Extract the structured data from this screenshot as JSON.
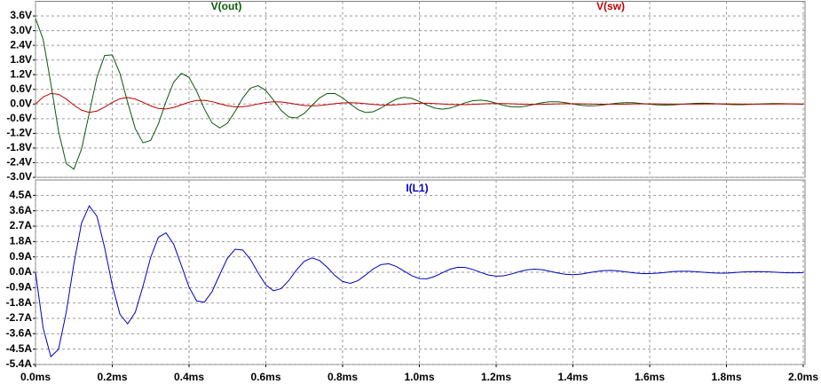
{
  "chart_data": [
    {
      "type": "line",
      "grid": true,
      "xlim": [
        0,
        2
      ],
      "xticks": [
        0,
        0.2,
        0.4,
        0.6,
        0.8,
        1.0,
        1.2,
        1.4,
        1.6,
        1.8,
        2.0
      ],
      "ylim": [
        -3.0,
        4.2
      ],
      "yticks": [
        {
          "value": 3.6,
          "label": "3.6V"
        },
        {
          "value": 3.0,
          "label": "3.0V"
        },
        {
          "value": 2.4,
          "label": "2.4V"
        },
        {
          "value": 1.8,
          "label": "1.8V"
        },
        {
          "value": 1.2,
          "label": "1.2V"
        },
        {
          "value": 0.6,
          "label": "0.6V"
        },
        {
          "value": 0.0,
          "label": "0.0V"
        },
        {
          "value": -0.6,
          "label": "-0.6V"
        },
        {
          "value": -1.2,
          "label": "-1.2V"
        },
        {
          "value": -1.8,
          "label": "-1.8V"
        },
        {
          "value": -2.4,
          "label": "-2.4V"
        },
        {
          "value": -3.0,
          "label": "-3.0V"
        }
      ],
      "x": [
        0,
        0.02,
        0.04,
        0.06,
        0.08,
        0.1,
        0.12,
        0.14,
        0.16,
        0.18,
        0.2,
        0.22,
        0.24,
        0.26,
        0.28,
        0.3,
        0.32,
        0.34,
        0.36,
        0.38,
        0.4,
        0.42,
        0.44,
        0.46,
        0.48,
        0.5,
        0.52,
        0.54,
        0.56,
        0.58,
        0.6,
        0.62,
        0.64,
        0.66,
        0.68,
        0.7,
        0.72,
        0.74,
        0.76,
        0.78,
        0.8,
        0.82,
        0.84,
        0.86,
        0.88,
        0.9,
        0.92,
        0.94,
        0.96,
        0.98,
        1.0,
        1.02,
        1.04,
        1.06,
        1.08,
        1.1,
        1.12,
        1.14,
        1.16,
        1.18,
        1.2,
        1.22,
        1.24,
        1.26,
        1.28,
        1.3,
        1.32,
        1.34,
        1.36,
        1.38,
        1.4,
        1.42,
        1.44,
        1.46,
        1.48,
        1.5,
        1.52,
        1.54,
        1.56,
        1.58,
        1.6,
        1.62,
        1.64,
        1.66,
        1.68,
        1.7,
        1.72,
        1.74,
        1.76,
        1.78,
        1.8,
        1.82,
        1.84,
        1.86,
        1.88,
        1.9,
        1.92,
        1.94,
        1.96,
        1.98,
        2.0
      ],
      "series": [
        {
          "name": "V(out)",
          "color": "#0a5a0a",
          "values": [
            3.5,
            2.638,
            0.834,
            -1.114,
            -2.432,
            -2.666,
            -1.837,
            -0.372,
            1.093,
            1.982,
            2.008,
            1.246,
            0.074,
            -1.009,
            -1.588,
            -1.49,
            -0.818,
            0.105,
            0.895,
            1.257,
            1.089,
            0.514,
            -0.205,
            -0.772,
            -0.981,
            -0.783,
            -0.301,
            0.25,
            0.648,
            0.752,
            0.553,
            0.158,
            -0.261,
            -0.534,
            -0.571,
            -0.383,
            -0.062,
            0.25,
            0.434,
            0.429,
            0.256,
            0.002,
            -0.228,
            -0.347,
            -0.316,
            -0.166,
            0.034,
            0.2,
            0.273,
            0.231,
            0.103,
            -0.044,
            -0.166,
            -0.211,
            -0.168,
            -0.065,
            0.054,
            0.139,
            0.162,
            0.119,
            0.034,
            -0.056,
            -0.115,
            -0.123,
            -0.082,
            -0.013,
            0.054,
            0.093,
            0.092,
            0.055,
            0.0,
            -0.049,
            -0.075,
            -0.068,
            -0.036,
            0.007,
            0.043,
            0.059,
            0.05,
            0.022,
            -0.009,
            -0.036,
            -0.045,
            -0.036,
            -0.014,
            0.012,
            0.03,
            0.035,
            0.026,
            0.007,
            -0.012,
            -0.025,
            -0.026,
            -0.018,
            -0.003,
            0.012,
            0.02,
            0.02,
            0.012,
            0.0,
            -0.011
          ]
        },
        {
          "name": "V(sw)",
          "color": "#c00000",
          "values": [
            0,
            0.287,
            0.433,
            0.396,
            0.207,
            -0.044,
            -0.252,
            -0.341,
            -0.288,
            -0.127,
            0.067,
            0.216,
            0.265,
            0.206,
            0.072,
            -0.076,
            -0.18,
            -0.202,
            -0.144,
            -0.035,
            0.077,
            0.147,
            0.153,
            0.099,
            0.011,
            -0.072,
            -0.118,
            -0.114,
            -0.066,
            0.004,
            0.065,
            0.094,
            0.084,
            0.042,
            -0.012,
            -0.056,
            -0.074,
            -0.061,
            -0.025,
            0.017,
            0.048,
            0.057,
            0.043,
            0.014,
            -0.018,
            -0.039,
            -0.044,
            -0.03,
            -0.006,
            0.018,
            0.032,
            0.033,
            0.021,
            0.002,
            -0.015,
            -0.025,
            -0.025,
            -0.014,
            0.001,
            0.014,
            0.02,
            0.018,
            0.009,
            -0.003,
            -0.012,
            -0.016,
            -0.013,
            -0.005,
            0.004,
            0.01,
            0.012,
            0.009,
            0.003,
            -0.004,
            -0.008,
            -0.009,
            -0.006,
            -0.001,
            0.004,
            0.007,
            0.007,
            0.005,
            0.0,
            -0.003,
            -0.005,
            -0.005,
            -0.003,
            0.0,
            0.003,
            0.004,
            0.004,
            0.002,
            -0.001,
            -0.003,
            -0.003,
            -0.003,
            -0.001,
            0.001,
            0.002,
            0.003,
            0.002
          ]
        }
      ]
    },
    {
      "type": "line",
      "grid": true,
      "xlim": [
        0,
        2
      ],
      "xticks": [
        {
          "value": 0,
          "label": "0.0ms"
        },
        {
          "value": 0.2,
          "label": "0.2ms"
        },
        {
          "value": 0.4,
          "label": "0.4ms"
        },
        {
          "value": 0.6,
          "label": "0.6ms"
        },
        {
          "value": 0.8,
          "label": "0.8ms"
        },
        {
          "value": 1.0,
          "label": "1.0ms"
        },
        {
          "value": 1.2,
          "label": "1.2ms"
        },
        {
          "value": 1.4,
          "label": "1.4ms"
        },
        {
          "value": 1.6,
          "label": "1.6ms"
        },
        {
          "value": 1.8,
          "label": "1.8ms"
        },
        {
          "value": 2.0,
          "label": "2.0ms"
        }
      ],
      "ylim": [
        -5.4,
        5.4
      ],
      "yticks": [
        {
          "value": 4.5,
          "label": "4.5A"
        },
        {
          "value": 3.6,
          "label": "3.6A"
        },
        {
          "value": 2.7,
          "label": "2.7A"
        },
        {
          "value": 1.8,
          "label": "1.8A"
        },
        {
          "value": 0.9,
          "label": "0.9A"
        },
        {
          "value": 0.0,
          "label": "0.0A"
        },
        {
          "value": -0.9,
          "label": "-0.9A"
        },
        {
          "value": -1.8,
          "label": "-1.8A"
        },
        {
          "value": -2.7,
          "label": "-2.7A"
        },
        {
          "value": -3.6,
          "label": "-3.6A"
        },
        {
          "value": -4.5,
          "label": "-4.5A"
        },
        {
          "value": -5.4,
          "label": "-5.4A"
        }
      ],
      "x": [
        0,
        0.02,
        0.04,
        0.06,
        0.08,
        0.1,
        0.12,
        0.14,
        0.16,
        0.18,
        0.2,
        0.22,
        0.24,
        0.26,
        0.28,
        0.3,
        0.32,
        0.34,
        0.36,
        0.38,
        0.4,
        0.42,
        0.44,
        0.46,
        0.48,
        0.5,
        0.52,
        0.54,
        0.56,
        0.58,
        0.6,
        0.62,
        0.64,
        0.66,
        0.68,
        0.7,
        0.72,
        0.74,
        0.76,
        0.78,
        0.8,
        0.82,
        0.84,
        0.86,
        0.88,
        0.9,
        0.92,
        0.94,
        0.96,
        0.98,
        1.0,
        1.02,
        1.04,
        1.06,
        1.08,
        1.1,
        1.12,
        1.14,
        1.16,
        1.18,
        1.2,
        1.22,
        1.24,
        1.26,
        1.28,
        1.3,
        1.32,
        1.34,
        1.36,
        1.38,
        1.4,
        1.42,
        1.44,
        1.46,
        1.48,
        1.5,
        1.52,
        1.54,
        1.56,
        1.58,
        1.6,
        1.62,
        1.64,
        1.66,
        1.68,
        1.7,
        1.72,
        1.74,
        1.76,
        1.78,
        1.8,
        1.82,
        1.84,
        1.86,
        1.88,
        1.9,
        1.92,
        1.94,
        1.96,
        1.98,
        2.0
      ],
      "series": [
        {
          "name": "I(L1)",
          "color": "#0000c0",
          "values": [
            0,
            -3.275,
            -4.94,
            -4.51,
            -2.36,
            0.5,
            2.88,
            3.89,
            3.28,
            1.45,
            -0.76,
            -2.46,
            -3.02,
            -2.34,
            -0.82,
            0.87,
            2.05,
            2.31,
            1.64,
            0.4,
            -0.87,
            -1.68,
            -1.75,
            -1.13,
            -0.13,
            0.82,
            1.35,
            1.3,
            0.75,
            -0.04,
            -0.74,
            -1.08,
            -0.96,
            -0.48,
            0.14,
            0.64,
            0.84,
            0.69,
            0.29,
            -0.19,
            -0.54,
            -0.65,
            -0.49,
            -0.16,
            0.2,
            0.45,
            0.5,
            0.34,
            0.07,
            -0.2,
            -0.37,
            -0.38,
            -0.24,
            -0.03,
            0.18,
            0.29,
            0.28,
            0.16,
            -0.01,
            -0.16,
            -0.23,
            -0.21,
            -0.1,
            0.03,
            0.14,
            0.18,
            0.15,
            0.06,
            -0.04,
            -0.12,
            -0.14,
            -0.11,
            -0.03,
            0.04,
            0.1,
            0.11,
            0.07,
            0.02,
            -0.04,
            -0.08,
            -0.08,
            -0.05,
            -0.01,
            0.04,
            0.06,
            0.06,
            0.03,
            0.0,
            -0.03,
            -0.05,
            -0.05,
            -0.02,
            0.01,
            0.03,
            0.04,
            0.03,
            0.01,
            -0.01,
            -0.03,
            -0.03,
            -0.02
          ]
        }
      ]
    }
  ]
}
